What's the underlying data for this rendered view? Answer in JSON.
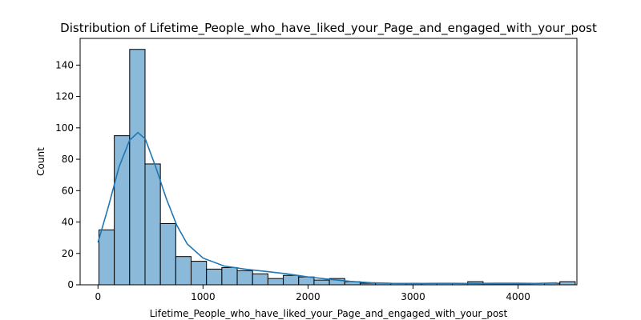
{
  "chart_data": {
    "type": "bar",
    "title": "Distribution of Lifetime_People_who_have_liked_your_Page_and_engaged_with_your_post",
    "xlabel": "Lifetime_People_who_have_liked_your_Page_and_engaged_with_your_post",
    "ylabel": "Count",
    "xlim": [
      -170,
      4560
    ],
    "ylim": [
      0,
      157
    ],
    "xticks": [
      0,
      1000,
      2000,
      3000,
      4000
    ],
    "yticks": [
      0,
      20,
      40,
      60,
      80,
      100,
      120,
      140
    ],
    "bin_start": 9,
    "bin_width": 146.3,
    "counts": [
      35,
      95,
      150,
      77,
      39,
      18,
      15,
      10,
      11,
      9,
      7,
      4,
      6,
      5,
      3,
      4,
      2,
      1,
      1,
      1,
      1,
      1,
      1,
      1,
      2,
      1,
      1,
      1,
      1,
      1,
      2
    ],
    "kde": [
      [
        0,
        27
      ],
      [
        100,
        50
      ],
      [
        200,
        75
      ],
      [
        300,
        92
      ],
      [
        380,
        97
      ],
      [
        450,
        93
      ],
      [
        550,
        75
      ],
      [
        650,
        55
      ],
      [
        750,
        38
      ],
      [
        850,
        26
      ],
      [
        1000,
        17
      ],
      [
        1200,
        12
      ],
      [
        1400,
        10
      ],
      [
        1600,
        8.5
      ],
      [
        1800,
        7
      ],
      [
        2000,
        5
      ],
      [
        2200,
        3.5
      ],
      [
        2400,
        2.2
      ],
      [
        2600,
        1.3
      ],
      [
        2800,
        0.9
      ],
      [
        3000,
        0.8
      ],
      [
        3200,
        0.9
      ],
      [
        3400,
        0.9
      ],
      [
        3600,
        0.8
      ],
      [
        3800,
        0.6
      ],
      [
        4000,
        0.6
      ],
      [
        4200,
        0.9
      ],
      [
        4370,
        1.2
      ]
    ]
  }
}
